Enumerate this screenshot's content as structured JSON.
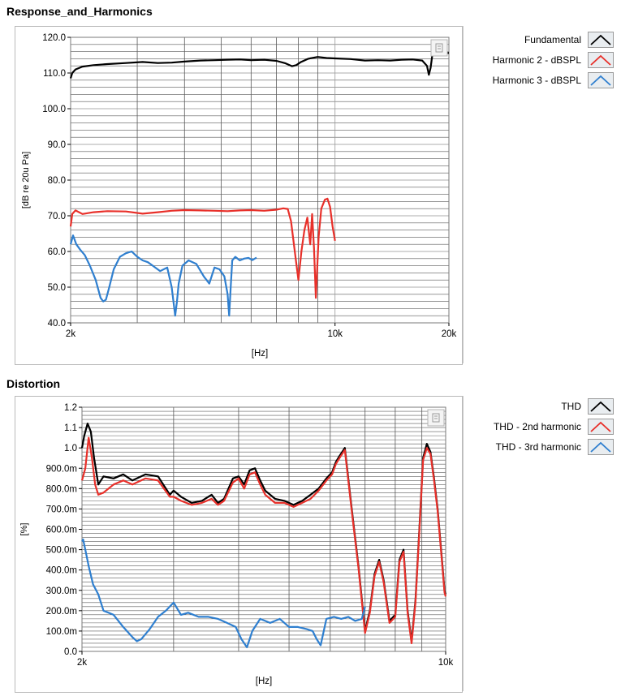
{
  "panels": [
    {
      "title": "Response_and_Harmonics",
      "legend": [
        {
          "label": "Fundamental",
          "color": "#000000"
        },
        {
          "label": "Harmonic 2 - dBSPL",
          "color": "#e8302a"
        },
        {
          "label": "Harmonic 3 - dBSPL",
          "color": "#2f7fcf"
        }
      ]
    },
    {
      "title": "Distortion",
      "legend": [
        {
          "label": "THD",
          "color": "#000000"
        },
        {
          "label": "THD - 2nd harmonic",
          "color": "#e8302a"
        },
        {
          "label": "THD - 3rd harmonic",
          "color": "#2f7fcf"
        }
      ]
    }
  ],
  "chart_data": [
    {
      "type": "line",
      "title": "Response_and_Harmonics",
      "xlabel": "[Hz]",
      "ylabel": "[dB re 20u Pa]",
      "xscale": "log",
      "xlim": [
        2000,
        20000
      ],
      "ylim": [
        40,
        120
      ],
      "xticks": [
        2000,
        10000,
        20000
      ],
      "xtick_labels": [
        "2k",
        "10k",
        "20k"
      ],
      "yticks": [
        40,
        50,
        60,
        70,
        80,
        90,
        100,
        110,
        120
      ],
      "ytick_labels": [
        "40.0",
        "50.0",
        "60.0",
        "70.0",
        "80.0",
        "90.0",
        "100.0",
        "110.0",
        "120.0"
      ],
      "grid": true,
      "legend_position": "right",
      "series": [
        {
          "name": "Fundamental",
          "color": "#000000",
          "x": [
            2000,
            2020,
            2060,
            2150,
            2300,
            2500,
            2800,
            3100,
            3400,
            3700,
            4000,
            4400,
            4800,
            5200,
            5600,
            6000,
            6500,
            7000,
            7400,
            7700,
            7900,
            8100,
            8500,
            9000,
            9500,
            10000,
            11000,
            12000,
            13000,
            14000,
            15000,
            16000,
            17000,
            17500,
            17700,
            17900,
            18100,
            18400,
            19000,
            20000
          ],
          "y": [
            108.5,
            110,
            111,
            111.8,
            112.2,
            112.5,
            112.8,
            113.1,
            112.8,
            112.9,
            113.2,
            113.5,
            113.6,
            113.7,
            113.8,
            113.6,
            113.7,
            113.4,
            112.7,
            111.9,
            112.2,
            113.0,
            114.0,
            114.5,
            114.2,
            114.1,
            113.9,
            113.5,
            113.6,
            113.5,
            113.7,
            113.8,
            113.5,
            112.0,
            109.5,
            111.5,
            115.5,
            116.0,
            115.8,
            115.6
          ]
        },
        {
          "name": "Harmonic 2 - dBSPL",
          "color": "#e8302a",
          "x": [
            2000,
            2020,
            2060,
            2150,
            2300,
            2500,
            2800,
            3100,
            3400,
            3700,
            4000,
            4400,
            4800,
            5200,
            5600,
            6000,
            6500,
            7000,
            7300,
            7500,
            7650,
            7850,
            8000,
            8150,
            8300,
            8450,
            8600,
            8700,
            8800,
            8900,
            9050,
            9200,
            9400,
            9550,
            9700,
            9850,
            10000
          ],
          "y": [
            67,
            70.5,
            71.5,
            70.5,
            71,
            71.3,
            71.2,
            70.6,
            71.0,
            71.4,
            71.6,
            71.5,
            71.4,
            71.3,
            71.5,
            71.6,
            71.4,
            71.7,
            72.1,
            71.9,
            68.5,
            59,
            52,
            60,
            66,
            69.5,
            62,
            70.5,
            61,
            47,
            64,
            72,
            74.5,
            74.8,
            72.5,
            67,
            63
          ]
        },
        {
          "name": "Harmonic 3 - dBSPL",
          "color": "#2f7fcf",
          "x": [
            2000,
            2030,
            2070,
            2120,
            2180,
            2250,
            2330,
            2400,
            2440,
            2480,
            2530,
            2600,
            2700,
            2800,
            2900,
            3000,
            3100,
            3200,
            3300,
            3450,
            3600,
            3700,
            3780,
            3820,
            3860,
            3950,
            4100,
            4300,
            4500,
            4650,
            4800,
            4950,
            5100,
            5200,
            5250,
            5300,
            5350,
            5450,
            5600,
            5750,
            5900,
            6050,
            6200
          ],
          "y": [
            62,
            64.5,
            62,
            60.5,
            59,
            56,
            52,
            47,
            46,
            46.5,
            50,
            55,
            58.5,
            59.5,
            60,
            58.5,
            57.5,
            57,
            56,
            54.5,
            55.5,
            50,
            42,
            46,
            51,
            56,
            57.5,
            56.5,
            53,
            51,
            55.5,
            55,
            53,
            48,
            42,
            50,
            57.5,
            58.5,
            57.5,
            58,
            58.2,
            57.6,
            58.3
          ]
        }
      ]
    },
    {
      "type": "line",
      "title": "Distortion",
      "xlabel": "[Hz]",
      "ylabel": "[%]",
      "xscale": "log",
      "xlim": [
        2000,
        10000
      ],
      "ylim": [
        0,
        1.2
      ],
      "xticks": [
        2000,
        10000
      ],
      "xtick_labels": [
        "2k",
        "10k"
      ],
      "yticks": [
        0,
        0.1,
        0.2,
        0.3,
        0.4,
        0.5,
        0.6,
        0.7,
        0.8,
        0.9,
        1.0,
        1.1,
        1.2
      ],
      "ytick_labels": [
        "0.0",
        "100.0m",
        "200.0m",
        "300.0m",
        "400.0m",
        "500.0m",
        "600.0m",
        "700.0m",
        "800.0m",
        "900.0m",
        "1.0",
        "1.1",
        "1.2"
      ],
      "grid": true,
      "legend_position": "right",
      "series": [
        {
          "name": "THD",
          "color": "#000000",
          "x": [
            2000,
            2020,
            2050,
            2080,
            2110,
            2150,
            2200,
            2300,
            2400,
            2500,
            2650,
            2800,
            2950,
            3000,
            3100,
            3250,
            3400,
            3550,
            3650,
            3750,
            3900,
            4000,
            4100,
            4200,
            4300,
            4400,
            4500,
            4700,
            4900,
            5100,
            5300,
            5500,
            5700,
            5900,
            6050,
            6150,
            6250,
            6400,
            6600,
            6800,
            7000,
            7150,
            7300,
            7450,
            7600,
            7800,
            8000,
            8150,
            8300,
            8450,
            8600,
            8750,
            8900,
            9050,
            9200,
            9350,
            9500,
            9650,
            9800,
            9950,
            10000
          ],
          "y": [
            1.0,
            1.06,
            1.12,
            1.08,
            0.95,
            0.82,
            0.86,
            0.85,
            0.87,
            0.84,
            0.87,
            0.86,
            0.77,
            0.79,
            0.76,
            0.73,
            0.74,
            0.77,
            0.73,
            0.75,
            0.85,
            0.86,
            0.82,
            0.89,
            0.9,
            0.84,
            0.79,
            0.75,
            0.74,
            0.72,
            0.74,
            0.77,
            0.8,
            0.85,
            0.88,
            0.93,
            0.96,
            1.0,
            0.7,
            0.42,
            0.1,
            0.2,
            0.38,
            0.45,
            0.35,
            0.15,
            0.18,
            0.45,
            0.5,
            0.2,
            0.05,
            0.25,
            0.6,
            0.95,
            1.02,
            0.98,
            0.85,
            0.7,
            0.5,
            0.3,
            0.28
          ]
        },
        {
          "name": "THD - 2nd harmonic",
          "color": "#e8302a",
          "x": [
            2000,
            2030,
            2060,
            2090,
            2120,
            2150,
            2200,
            2300,
            2400,
            2500,
            2650,
            2800,
            2950,
            3000,
            3100,
            3250,
            3400,
            3550,
            3650,
            3750,
            3900,
            4000,
            4100,
            4200,
            4300,
            4400,
            4500,
            4700,
            4900,
            5100,
            5300,
            5500,
            5700,
            5900,
            6050,
            6150,
            6250,
            6400,
            6600,
            6800,
            7000,
            7150,
            7300,
            7450,
            7600,
            7800,
            8000,
            8150,
            8300,
            8450,
            8600,
            8750,
            8900,
            9050,
            9200,
            9350,
            9500,
            9650,
            9800,
            9950,
            10000
          ],
          "y": [
            0.84,
            0.9,
            1.05,
            0.95,
            0.82,
            0.77,
            0.78,
            0.82,
            0.84,
            0.82,
            0.85,
            0.84,
            0.76,
            0.76,
            0.74,
            0.72,
            0.73,
            0.75,
            0.72,
            0.74,
            0.83,
            0.85,
            0.8,
            0.87,
            0.88,
            0.82,
            0.77,
            0.73,
            0.73,
            0.71,
            0.73,
            0.75,
            0.79,
            0.84,
            0.87,
            0.92,
            0.95,
            0.99,
            0.69,
            0.41,
            0.09,
            0.19,
            0.37,
            0.44,
            0.34,
            0.14,
            0.17,
            0.44,
            0.49,
            0.19,
            0.04,
            0.24,
            0.59,
            0.94,
            1.0,
            0.97,
            0.84,
            0.69,
            0.49,
            0.29,
            0.27
          ]
        },
        {
          "name": "THD - 3rd harmonic",
          "color": "#2f7fcf",
          "x": [
            2000,
            2010,
            2030,
            2060,
            2100,
            2150,
            2200,
            2300,
            2400,
            2500,
            2550,
            2600,
            2700,
            2800,
            2900,
            3000,
            3100,
            3200,
            3350,
            3500,
            3650,
            3800,
            3950,
            4050,
            4150,
            4250,
            4400,
            4600,
            4800,
            5000,
            5200,
            5400,
            5550,
            5650,
            5750,
            5900,
            6100,
            6300,
            6500,
            6700,
            6900,
            7000
          ],
          "y": [
            0.54,
            0.55,
            0.5,
            0.42,
            0.33,
            0.28,
            0.2,
            0.18,
            0.12,
            0.07,
            0.05,
            0.06,
            0.11,
            0.17,
            0.2,
            0.24,
            0.18,
            0.19,
            0.17,
            0.17,
            0.16,
            0.14,
            0.12,
            0.06,
            0.02,
            0.1,
            0.16,
            0.14,
            0.16,
            0.12,
            0.12,
            0.11,
            0.1,
            0.06,
            0.03,
            0.16,
            0.17,
            0.16,
            0.17,
            0.15,
            0.16,
            0.22
          ]
        }
      ]
    }
  ]
}
